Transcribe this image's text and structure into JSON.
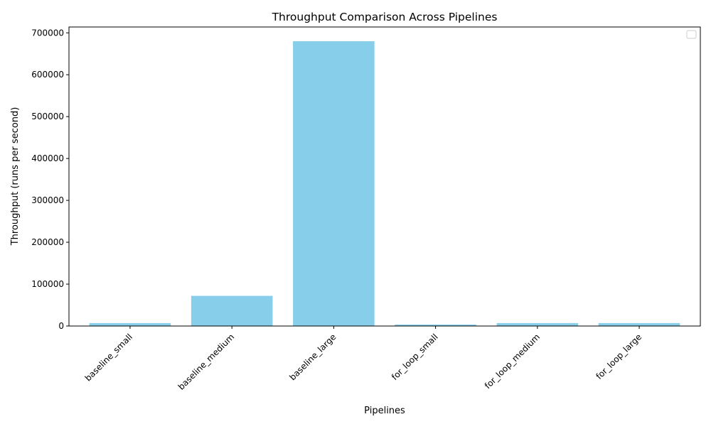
{
  "chart_data": {
    "type": "bar",
    "title": "Throughput Comparison Across Pipelines",
    "xlabel": "Pipelines",
    "ylabel": "Throughput (runs per second)",
    "categories": [
      "baseline_small",
      "baseline_medium",
      "baseline_large",
      "for_loop_small",
      "for_loop_medium",
      "for_loop_large"
    ],
    "values": [
      7000,
      72000,
      680000,
      3500,
      7000,
      7000
    ],
    "ylim": [
      0,
      714000
    ],
    "yticks": [
      0,
      100000,
      200000,
      300000,
      400000,
      500000,
      600000,
      700000
    ],
    "bar_color": "#87ceeb",
    "grid": false,
    "legend": {
      "placement": "top-right",
      "entries": []
    }
  }
}
